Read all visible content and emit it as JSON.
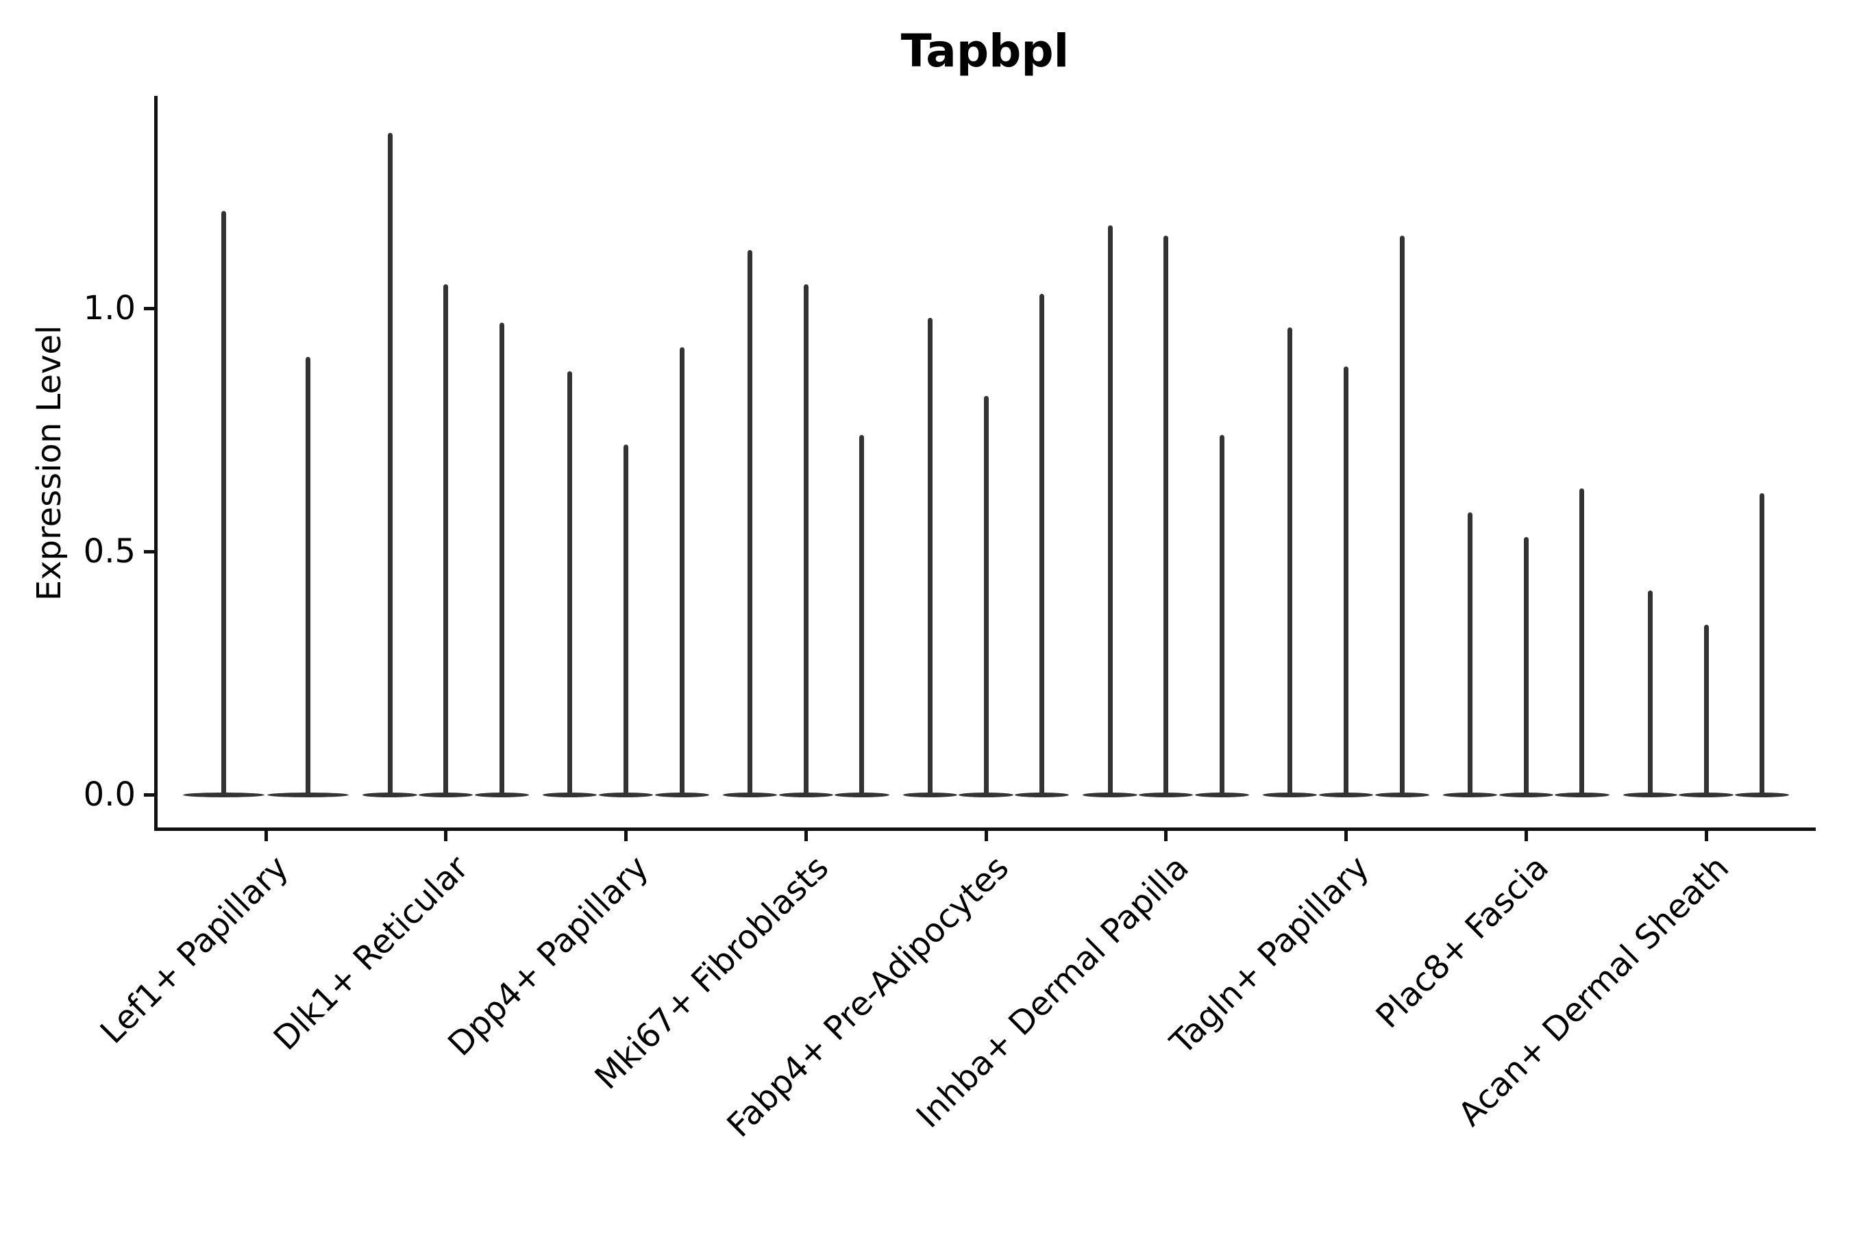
{
  "title": "Tapbpl",
  "ylabel": "Expression Level",
  "colors": {
    "background": "#ffffff",
    "violin": "#333333",
    "axis": "#111111",
    "text": "#000000"
  },
  "chart_data": {
    "type": "violin",
    "title": "Tapbpl",
    "xlabel": "",
    "ylabel": "Expression Level",
    "ylim": [
      -0.07,
      1.44
    ],
    "yticks": [
      {
        "value": 0.0,
        "label": "0.0"
      },
      {
        "value": 0.5,
        "label": "0.5"
      },
      {
        "value": 1.0,
        "label": "1.0"
      }
    ],
    "grid": "off",
    "legend": "none",
    "description": "Spike-shaped violins: density bulk is a flat lens at 0, with a thin spike rising to the maximum expression value of each violin.",
    "categories": [
      "Lef1+ Papillary",
      "Dlk1+ Reticular",
      "Dpp4+ Papillary",
      "Mki67+ Fibroblasts",
      "Fabp4+ Pre-Adipocytes",
      "Inhba+ Dermal Papilla",
      "Tagln+ Papillary",
      "Plac8+ Fascia",
      "Acan+ Dermal Sheath"
    ],
    "groups": [
      {
        "label": "Lef1+ Papillary",
        "violin_maxima": [
          1.2,
          0.9
        ]
      },
      {
        "label": "Dlk1+ Reticular",
        "violin_maxima": [
          1.36,
          1.05,
          0.97
        ]
      },
      {
        "label": "Dpp4+ Papillary",
        "violin_maxima": [
          0.87,
          0.72,
          0.92
        ]
      },
      {
        "label": "Mki67+ Fibroblasts",
        "violin_maxima": [
          1.12,
          1.05,
          0.74
        ]
      },
      {
        "label": "Fabp4+ Pre-Adipocytes",
        "violin_maxima": [
          0.98,
          0.82,
          1.03
        ]
      },
      {
        "label": "Inhba+ Dermal Papilla",
        "violin_maxima": [
          1.17,
          1.15,
          0.74
        ]
      },
      {
        "label": "Tagln+ Papillary",
        "violin_maxima": [
          0.96,
          0.88,
          1.15
        ]
      },
      {
        "label": "Plac8+ Fascia",
        "violin_maxima": [
          0.58,
          0.53,
          0.63
        ]
      },
      {
        "label": "Acan+ Dermal Sheath",
        "violin_maxima": [
          0.42,
          0.35,
          0.62
        ]
      }
    ]
  }
}
